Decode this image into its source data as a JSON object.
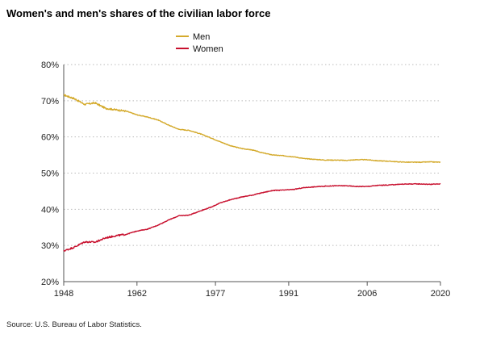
{
  "title": "Women's and men's shares of the civilian labor force",
  "source": "Source: U.S. Bureau of Labor Statistics.",
  "colors": {
    "men": "#d4aa2c",
    "women": "#c8102e",
    "axis": "#555555",
    "grid": "#bbbbbb"
  },
  "chart_data": {
    "type": "line",
    "title": "Women's and men's shares of the civilian labor force",
    "xlabel": "",
    "ylabel": "",
    "xlim": [
      1948,
      2020
    ],
    "ylim": [
      20,
      80
    ],
    "x_ticks": [
      1948,
      1962,
      1977,
      1991,
      2006,
      2020
    ],
    "x_tick_labels": [
      "1948",
      "1962",
      "1977",
      "1991",
      "2006",
      "2020"
    ],
    "y_ticks": [
      20,
      30,
      40,
      50,
      60,
      70,
      80
    ],
    "y_tick_labels": [
      "20%",
      "30%",
      "40%",
      "50%",
      "60%",
      "70%",
      "80%"
    ],
    "grid": "horizontal dotted",
    "legend_position": "top-center",
    "x": [
      1948,
      1950,
      1952,
      1954,
      1956,
      1958,
      1960,
      1962,
      1964,
      1966,
      1968,
      1970,
      1972,
      1974,
      1976,
      1978,
      1980,
      1982,
      1984,
      1986,
      1988,
      1990,
      1992,
      1994,
      1996,
      1998,
      2000,
      2002,
      2004,
      2006,
      2008,
      2010,
      2012,
      2014,
      2016,
      2018,
      2020
    ],
    "series": [
      {
        "name": "Men",
        "color": "#d4aa2c",
        "values": [
          71.6,
          70.6,
          69.0,
          69.4,
          67.9,
          67.5,
          67.1,
          66.1,
          65.5,
          64.7,
          63.3,
          62.1,
          61.8,
          60.9,
          59.8,
          58.6,
          57.5,
          56.8,
          56.4,
          55.6,
          55.0,
          54.8,
          54.5,
          54.0,
          53.8,
          53.6,
          53.6,
          53.5,
          53.7,
          53.7,
          53.4,
          53.3,
          53.1,
          53.0,
          53.0,
          53.1,
          53.0
        ]
      },
      {
        "name": "Women",
        "color": "#c8102e",
        "values": [
          28.5,
          29.5,
          31.0,
          30.9,
          32.1,
          32.7,
          33.1,
          34.0,
          34.5,
          35.6,
          37.0,
          38.2,
          38.4,
          39.5,
          40.5,
          41.8,
          42.7,
          43.4,
          43.9,
          44.6,
          45.2,
          45.3,
          45.5,
          46.0,
          46.2,
          46.4,
          46.5,
          46.5,
          46.3,
          46.3,
          46.6,
          46.7,
          46.9,
          47.0,
          47.0,
          46.9,
          47.0
        ]
      }
    ]
  }
}
